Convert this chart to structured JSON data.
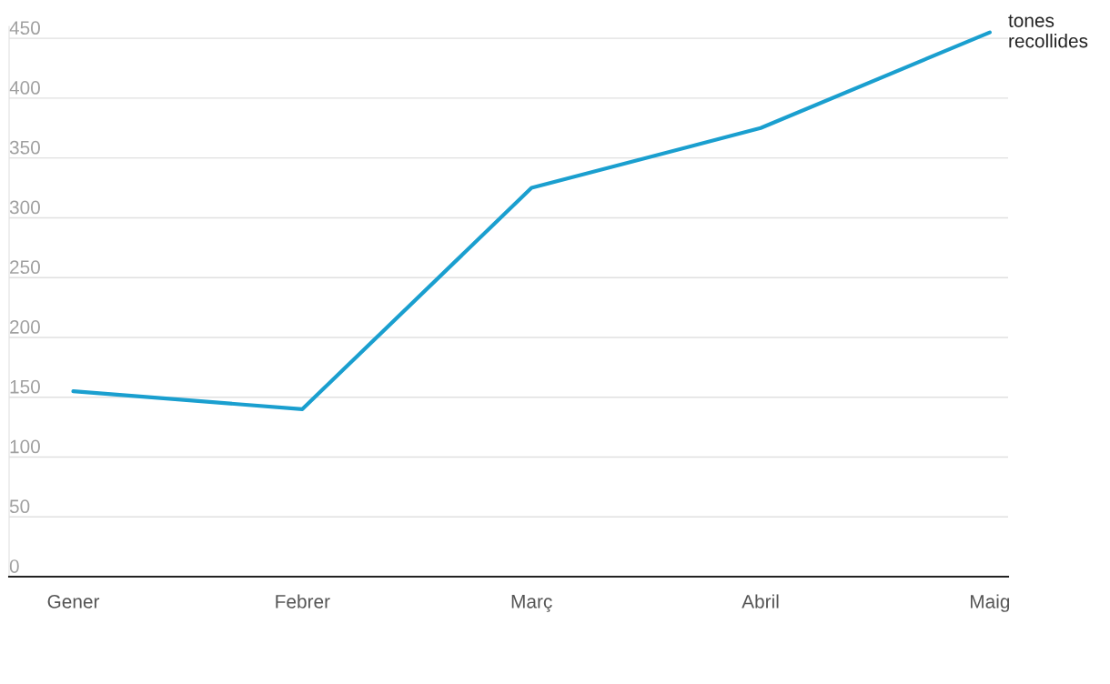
{
  "chart_data": {
    "type": "line",
    "categories": [
      "Gener",
      "Febrer",
      "Març",
      "Abril",
      "Maig"
    ],
    "series": [
      {
        "name": "tones recollides",
        "color": "#1a9fcf",
        "values": [
          155,
          140,
          325,
          375,
          455
        ]
      }
    ],
    "ylim": [
      0,
      460
    ],
    "yticks": [
      0,
      50,
      100,
      150,
      200,
      250,
      300,
      350,
      400,
      450
    ],
    "grid": "y",
    "legend": false,
    "marker": "none",
    "line_style": "solid"
  }
}
